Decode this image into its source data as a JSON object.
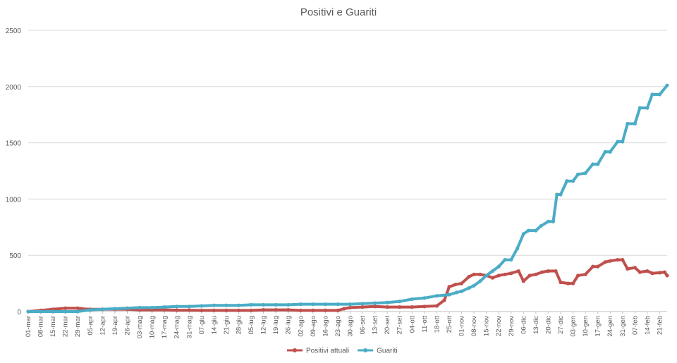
{
  "chart_data": {
    "type": "line",
    "title": "Positivi e Guariti",
    "xlabel": "",
    "ylabel": "",
    "ylim": [
      0,
      2500
    ],
    "yticks": [
      0,
      500,
      1000,
      1500,
      2000,
      2500
    ],
    "grid": true,
    "legend_position": "bottom",
    "categories": [
      "01-mar",
      "08-mar",
      "15-mar",
      "22-mar",
      "29-mar",
      "05-apr",
      "12-apr",
      "19-apr",
      "26-apr",
      "03-mag",
      "10-mag",
      "17-mag",
      "24-mag",
      "31-mag",
      "07-giu",
      "14-giu",
      "21-giu",
      "28-giu",
      "05-lug",
      "12-lug",
      "19-lug",
      "26-lug",
      "02-ago",
      "09-ago",
      "16-ago",
      "23-ago",
      "30-ago",
      "06-set",
      "13-set",
      "20-set",
      "27-set",
      "04-ott",
      "11-ott",
      "18-ott",
      "25-ott",
      "01-nov",
      "08-nov",
      "15-nov",
      "22-nov",
      "29-nov",
      "06-dic",
      "13-dic",
      "20-dic",
      "27-dic",
      "03-gen",
      "10-gen",
      "17-gen",
      "24-gen",
      "31-gen",
      "07-feb",
      "14-feb",
      "21-feb"
    ],
    "series": [
      {
        "name": "Positivi attuali",
        "color": "#C0504D",
        "points": [
          [
            0,
            0
          ],
          [
            1,
            10
          ],
          [
            2,
            20
          ],
          [
            3,
            30
          ],
          [
            4,
            30
          ],
          [
            4.3,
            25
          ],
          [
            5,
            20
          ],
          [
            6,
            20
          ],
          [
            7,
            20
          ],
          [
            8,
            20
          ],
          [
            9,
            15
          ],
          [
            10,
            15
          ],
          [
            11,
            15
          ],
          [
            12,
            12
          ],
          [
            13,
            12
          ],
          [
            14,
            10
          ],
          [
            15,
            10
          ],
          [
            16,
            10
          ],
          [
            17,
            10
          ],
          [
            18,
            10
          ],
          [
            19,
            15
          ],
          [
            20,
            15
          ],
          [
            21,
            15
          ],
          [
            22,
            10
          ],
          [
            23,
            10
          ],
          [
            24,
            10
          ],
          [
            25,
            10
          ],
          [
            25.5,
            25
          ],
          [
            26,
            35
          ],
          [
            27,
            40
          ],
          [
            28,
            45
          ],
          [
            29,
            40
          ],
          [
            30,
            40
          ],
          [
            31,
            40
          ],
          [
            32,
            45
          ],
          [
            33,
            50
          ],
          [
            33.6,
            100
          ],
          [
            34,
            220
          ],
          [
            34.5,
            240
          ],
          [
            35,
            250
          ],
          [
            35.6,
            310
          ],
          [
            36,
            330
          ],
          [
            36.5,
            330
          ],
          [
            37,
            320
          ],
          [
            37.5,
            300
          ],
          [
            38,
            320
          ],
          [
            38.5,
            330
          ],
          [
            39,
            340
          ],
          [
            39.6,
            360
          ],
          [
            40,
            270
          ],
          [
            40.5,
            320
          ],
          [
            41,
            330
          ],
          [
            41.5,
            350
          ],
          [
            42,
            360
          ],
          [
            42.6,
            360
          ],
          [
            43,
            260
          ],
          [
            43.6,
            250
          ],
          [
            44,
            250
          ],
          [
            44.4,
            320
          ],
          [
            45,
            330
          ],
          [
            45.6,
            400
          ],
          [
            46,
            400
          ],
          [
            46.6,
            440
          ],
          [
            47,
            450
          ],
          [
            47.6,
            460
          ],
          [
            48,
            460
          ],
          [
            48.4,
            380
          ],
          [
            49,
            390
          ],
          [
            49.4,
            350
          ],
          [
            50,
            360
          ],
          [
            50.4,
            340
          ],
          [
            51,
            345
          ],
          [
            51.4,
            350
          ],
          [
            51.6,
            320
          ]
        ]
      },
      {
        "name": "Guariti",
        "color": "#4BACC6",
        "points": [
          [
            0,
            0
          ],
          [
            1,
            0
          ],
          [
            2,
            0
          ],
          [
            3,
            0
          ],
          [
            4,
            0
          ],
          [
            5,
            15
          ],
          [
            6,
            20
          ],
          [
            7,
            25
          ],
          [
            8,
            30
          ],
          [
            9,
            35
          ],
          [
            10,
            35
          ],
          [
            11,
            40
          ],
          [
            12,
            45
          ],
          [
            13,
            45
          ],
          [
            14,
            50
          ],
          [
            15,
            55
          ],
          [
            16,
            55
          ],
          [
            17,
            55
          ],
          [
            18,
            60
          ],
          [
            19,
            60
          ],
          [
            20,
            60
          ],
          [
            21,
            60
          ],
          [
            22,
            65
          ],
          [
            23,
            65
          ],
          [
            24,
            65
          ],
          [
            25,
            65
          ],
          [
            26,
            65
          ],
          [
            27,
            70
          ],
          [
            28,
            75
          ],
          [
            29,
            80
          ],
          [
            30,
            90
          ],
          [
            31,
            110
          ],
          [
            32,
            120
          ],
          [
            33,
            140
          ],
          [
            34,
            150
          ],
          [
            34.6,
            170
          ],
          [
            35,
            180
          ],
          [
            35.6,
            210
          ],
          [
            36,
            230
          ],
          [
            36.5,
            270
          ],
          [
            37,
            320
          ],
          [
            37.5,
            360
          ],
          [
            38,
            400
          ],
          [
            38.5,
            460
          ],
          [
            39,
            460
          ],
          [
            39.5,
            560
          ],
          [
            40,
            690
          ],
          [
            40.4,
            720
          ],
          [
            41,
            720
          ],
          [
            41.4,
            760
          ],
          [
            42,
            800
          ],
          [
            42.4,
            800
          ],
          [
            42.7,
            1040
          ],
          [
            43,
            1040
          ],
          [
            43.5,
            1160
          ],
          [
            44,
            1160
          ],
          [
            44.4,
            1220
          ],
          [
            45,
            1230
          ],
          [
            45.6,
            1310
          ],
          [
            46,
            1310
          ],
          [
            46.6,
            1420
          ],
          [
            47,
            1420
          ],
          [
            47.6,
            1510
          ],
          [
            48,
            1510
          ],
          [
            48.4,
            1670
          ],
          [
            49,
            1670
          ],
          [
            49.4,
            1810
          ],
          [
            50,
            1810
          ],
          [
            50.4,
            1930
          ],
          [
            51,
            1930
          ],
          [
            51.6,
            2010
          ]
        ]
      }
    ]
  }
}
